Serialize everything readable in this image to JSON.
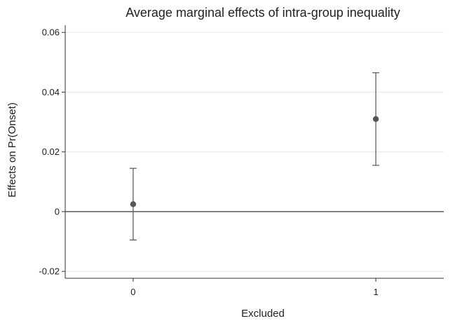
{
  "chart_data": {
    "type": "scatter",
    "title": "Average marginal effects of intra-group inequality",
    "xlabel": "Excluded",
    "ylabel": "Effects on Pr(Onset)",
    "categories": [
      "0",
      "1"
    ],
    "series": [
      {
        "points": [
          {
            "x": "0",
            "y": 0.0025,
            "ci_low": -0.0095,
            "ci_high": 0.0145
          },
          {
            "x": "1",
            "y": 0.031,
            "ci_low": 0.0155,
            "ci_high": 0.0465
          }
        ]
      }
    ],
    "yticks": [
      -0.02,
      0,
      0.02,
      0.04,
      0.06
    ],
    "ytick_labels": [
      "-0.02",
      "0",
      "0.02",
      "0.04",
      "0.06"
    ],
    "xtick_labels": [
      "0",
      "1"
    ],
    "ylim": [
      -0.0223,
      0.0624
    ],
    "xlim": [
      -0.28,
      1.28
    ],
    "grid": true,
    "reference_line_y": 0,
    "colors": {
      "marker": "#555555",
      "ci": "#555555",
      "grid": "#e6e6e6",
      "axis": "#333333",
      "reference_line": "#222222"
    }
  }
}
